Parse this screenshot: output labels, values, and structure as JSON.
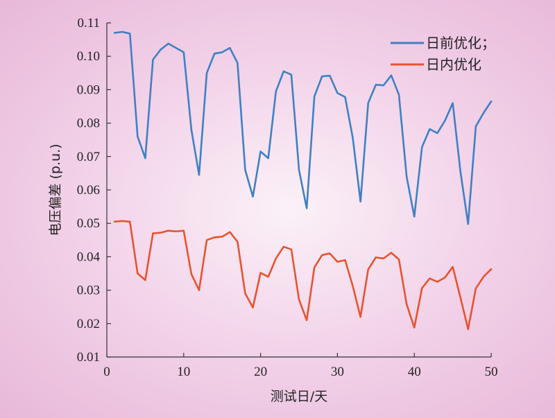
{
  "chart_data": {
    "type": "line",
    "xlabel": "测试日/天",
    "ylabel": "电压偏差 (p.u.)",
    "xlim": [
      0,
      50
    ],
    "ylim": [
      0.01,
      0.11
    ],
    "xticks": [
      "0",
      "10",
      "20",
      "30",
      "40",
      "50"
    ],
    "yticks": [
      "0.01",
      "0.02",
      "0.03",
      "0.04",
      "0.05",
      "0.06",
      "0.07",
      "0.08",
      "0.09",
      "0.10",
      "0.11"
    ],
    "legend_position": "top-right",
    "grid": false,
    "x": [
      1,
      2,
      3,
      4,
      5,
      6,
      7,
      8,
      9,
      10,
      11,
      12,
      13,
      14,
      15,
      16,
      17,
      18,
      19,
      20,
      21,
      22,
      23,
      24,
      25,
      26,
      27,
      28,
      29,
      30,
      31,
      32,
      33,
      34,
      35,
      36,
      37,
      38,
      39,
      40,
      41,
      42,
      43,
      44,
      45,
      46,
      47,
      48,
      49,
      50
    ],
    "series": [
      {
        "name": "日前优化；",
        "color": "#3f80c3",
        "values": [
          0.107,
          0.1073,
          0.1068,
          0.076,
          0.0695,
          0.099,
          0.102,
          0.1038,
          0.1025,
          0.1012,
          0.078,
          0.0645,
          0.095,
          0.1008,
          0.1012,
          0.1025,
          0.098,
          0.066,
          0.058,
          0.0715,
          0.0695,
          0.0895,
          0.0955,
          0.0945,
          0.066,
          0.0545,
          0.088,
          0.094,
          0.0942,
          0.089,
          0.0878,
          0.0755,
          0.0565,
          0.086,
          0.0915,
          0.0913,
          0.0943,
          0.0885,
          0.064,
          0.052,
          0.0728,
          0.0782,
          0.077,
          0.0808,
          0.086,
          0.0655,
          0.0498,
          0.079,
          0.083,
          0.0865
        ]
      },
      {
        "name": "日内优化",
        "color": "#e8532e",
        "values": [
          0.0505,
          0.0507,
          0.0505,
          0.035,
          0.033,
          0.047,
          0.0472,
          0.0478,
          0.0476,
          0.0478,
          0.0348,
          0.03,
          0.045,
          0.0458,
          0.046,
          0.0474,
          0.0445,
          0.029,
          0.0248,
          0.0352,
          0.034,
          0.0395,
          0.043,
          0.0422,
          0.0272,
          0.021,
          0.0368,
          0.0405,
          0.041,
          0.0385,
          0.039,
          0.0312,
          0.022,
          0.0362,
          0.0398,
          0.0395,
          0.0412,
          0.0392,
          0.0258,
          0.0188,
          0.0306,
          0.0335,
          0.0325,
          0.0338,
          0.037,
          0.0278,
          0.0183,
          0.0305,
          0.034,
          0.0363
        ]
      }
    ]
  }
}
